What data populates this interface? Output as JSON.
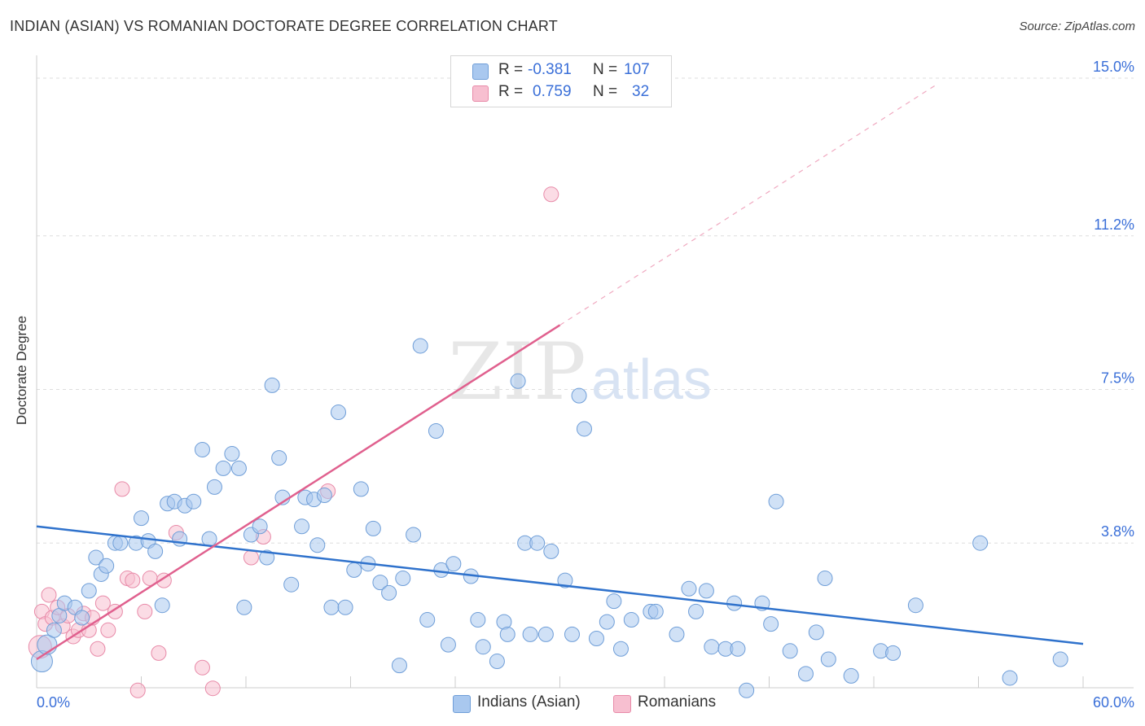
{
  "header": {
    "title": "INDIAN (ASIAN) VS ROMANIAN DOCTORATE DEGREE CORRELATION CHART",
    "source": "Source: ZipAtlas.com"
  },
  "watermark": {
    "zip": "ZIP",
    "atlas": "atlas"
  },
  "legend": {
    "series1": {
      "r_label": "R =",
      "r_value": "-0.381",
      "n_label": "N =",
      "n_value": "107"
    },
    "series2": {
      "r_label": "R =",
      "r_value": "0.759",
      "n_label": "N =",
      "n_value": "32"
    }
  },
  "colors": {
    "blue_fill": "#a9c8ef",
    "blue_stroke": "#6f9ed8",
    "blue_line": "#2f72cc",
    "pink_fill": "#f7bfd0",
    "pink_stroke": "#e88aa8",
    "pink_line": "#e0608e",
    "axis_text": "#3a6fd8",
    "grid": "#dddddd"
  },
  "chart_data": {
    "type": "scatter",
    "title": "INDIAN (ASIAN) VS ROMANIAN DOCTORATE DEGREE CORRELATION CHART",
    "xlabel": "",
    "ylabel": "Doctorate Degree",
    "xlim": [
      0,
      60
    ],
    "ylim": [
      0,
      15.0
    ],
    "x_tick_labels": [
      "0.0%",
      "60.0%"
    ],
    "y_ticks": [
      3.8,
      7.5,
      11.2,
      15.0
    ],
    "y_tick_labels": [
      "3.8%",
      "7.5%",
      "11.2%",
      "15.0%"
    ],
    "grid": true,
    "series": [
      {
        "name": "Indians (Asian)",
        "trend": {
          "x": [
            0,
            60
          ],
          "y": [
            4.2,
            1.37
          ]
        },
        "points": [
          [
            0.3,
            0.95
          ],
          [
            0.6,
            1.35
          ],
          [
            1.0,
            1.7
          ],
          [
            1.3,
            2.05
          ],
          [
            1.6,
            2.35
          ],
          [
            2.2,
            2.25
          ],
          [
            2.6,
            2.0
          ],
          [
            3.0,
            2.65
          ],
          [
            3.4,
            3.45
          ],
          [
            3.7,
            3.05
          ],
          [
            4.0,
            3.25
          ],
          [
            4.5,
            3.8
          ],
          [
            4.8,
            3.8
          ],
          [
            5.7,
            3.8
          ],
          [
            6.0,
            4.4
          ],
          [
            6.4,
            3.85
          ],
          [
            6.8,
            3.6
          ],
          [
            7.2,
            2.3
          ],
          [
            7.5,
            4.75
          ],
          [
            7.9,
            4.8
          ],
          [
            8.2,
            3.9
          ],
          [
            8.5,
            4.7
          ],
          [
            9.0,
            4.8
          ],
          [
            9.5,
            6.05
          ],
          [
            9.9,
            3.9
          ],
          [
            10.2,
            5.15
          ],
          [
            10.7,
            5.6
          ],
          [
            11.2,
            5.95
          ],
          [
            11.6,
            5.6
          ],
          [
            11.9,
            2.25
          ],
          [
            12.3,
            4.0
          ],
          [
            12.8,
            4.2
          ],
          [
            13.2,
            3.45
          ],
          [
            13.5,
            7.6
          ],
          [
            13.9,
            5.85
          ],
          [
            14.1,
            4.9
          ],
          [
            14.6,
            2.8
          ],
          [
            15.2,
            4.2
          ],
          [
            15.4,
            4.9
          ],
          [
            15.9,
            4.85
          ],
          [
            16.1,
            3.75
          ],
          [
            16.5,
            4.95
          ],
          [
            16.9,
            2.25
          ],
          [
            17.3,
            6.95
          ],
          [
            17.7,
            2.25
          ],
          [
            18.2,
            3.15
          ],
          [
            18.6,
            5.1
          ],
          [
            19.0,
            3.3
          ],
          [
            19.3,
            4.15
          ],
          [
            19.7,
            2.85
          ],
          [
            20.2,
            2.6
          ],
          [
            20.8,
            0.85
          ],
          [
            21.0,
            2.95
          ],
          [
            21.6,
            4.0
          ],
          [
            22.0,
            8.55
          ],
          [
            22.4,
            1.95
          ],
          [
            22.9,
            6.5
          ],
          [
            23.2,
            3.15
          ],
          [
            23.6,
            1.35
          ],
          [
            23.9,
            3.3
          ],
          [
            24.9,
            3.0
          ],
          [
            25.3,
            1.95
          ],
          [
            25.6,
            1.3
          ],
          [
            26.4,
            0.95
          ],
          [
            26.8,
            1.9
          ],
          [
            27.0,
            1.6
          ],
          [
            27.6,
            7.7
          ],
          [
            28.0,
            3.8
          ],
          [
            28.3,
            1.6
          ],
          [
            28.7,
            3.8
          ],
          [
            29.2,
            1.6
          ],
          [
            29.5,
            3.6
          ],
          [
            30.3,
            2.9
          ],
          [
            30.7,
            1.6
          ],
          [
            31.1,
            7.35
          ],
          [
            31.4,
            6.55
          ],
          [
            32.1,
            1.5
          ],
          [
            32.7,
            1.9
          ],
          [
            33.1,
            2.4
          ],
          [
            33.5,
            1.25
          ],
          [
            34.1,
            1.95
          ],
          [
            35.2,
            2.15
          ],
          [
            35.5,
            2.15
          ],
          [
            36.7,
            1.6
          ],
          [
            37.4,
            2.7
          ],
          [
            37.8,
            2.15
          ],
          [
            38.4,
            2.65
          ],
          [
            38.7,
            1.3
          ],
          [
            39.5,
            1.25
          ],
          [
            40.0,
            2.35
          ],
          [
            40.2,
            1.25
          ],
          [
            40.7,
            0.25
          ],
          [
            41.6,
            2.35
          ],
          [
            42.1,
            1.85
          ],
          [
            42.4,
            4.8
          ],
          [
            43.2,
            1.2
          ],
          [
            44.1,
            0.65
          ],
          [
            44.7,
            1.65
          ],
          [
            45.2,
            2.95
          ],
          [
            45.4,
            1.0
          ],
          [
            46.7,
            0.6
          ],
          [
            48.4,
            1.2
          ],
          [
            49.1,
            1.15
          ],
          [
            50.4,
            2.3
          ],
          [
            54.1,
            3.8
          ],
          [
            55.8,
            0.55
          ],
          [
            58.7,
            1.0
          ]
        ]
      },
      {
        "name": "Romanians",
        "trend": {
          "x": [
            0,
            30
          ],
          "y": [
            1.0,
            9.05
          ]
        },
        "points": [
          [
            0.3,
            2.15
          ],
          [
            0.5,
            1.85
          ],
          [
            0.7,
            2.55
          ],
          [
            0.9,
            2.0
          ],
          [
            1.2,
            2.25
          ],
          [
            1.5,
            1.8
          ],
          [
            1.8,
            2.05
          ],
          [
            2.1,
            1.55
          ],
          [
            2.4,
            1.7
          ],
          [
            2.7,
            2.1
          ],
          [
            3.0,
            1.7
          ],
          [
            3.2,
            2.0
          ],
          [
            3.5,
            1.25
          ],
          [
            3.8,
            2.35
          ],
          [
            4.1,
            1.7
          ],
          [
            4.5,
            2.15
          ],
          [
            4.9,
            5.1
          ],
          [
            5.2,
            2.95
          ],
          [
            5.5,
            2.9
          ],
          [
            5.8,
            0.25
          ],
          [
            6.2,
            2.15
          ],
          [
            6.5,
            2.95
          ],
          [
            7.0,
            1.15
          ],
          [
            7.3,
            2.9
          ],
          [
            8.0,
            4.05
          ],
          [
            9.5,
            0.8
          ],
          [
            10.1,
            0.3
          ],
          [
            12.3,
            3.45
          ],
          [
            13.0,
            3.95
          ],
          [
            16.7,
            5.05
          ],
          [
            29.5,
            12.2
          ],
          [
            0.2,
            1.3
          ]
        ]
      }
    ]
  },
  "bottom_legend": {
    "item1": "Indians (Asian)",
    "item2": "Romanians"
  }
}
